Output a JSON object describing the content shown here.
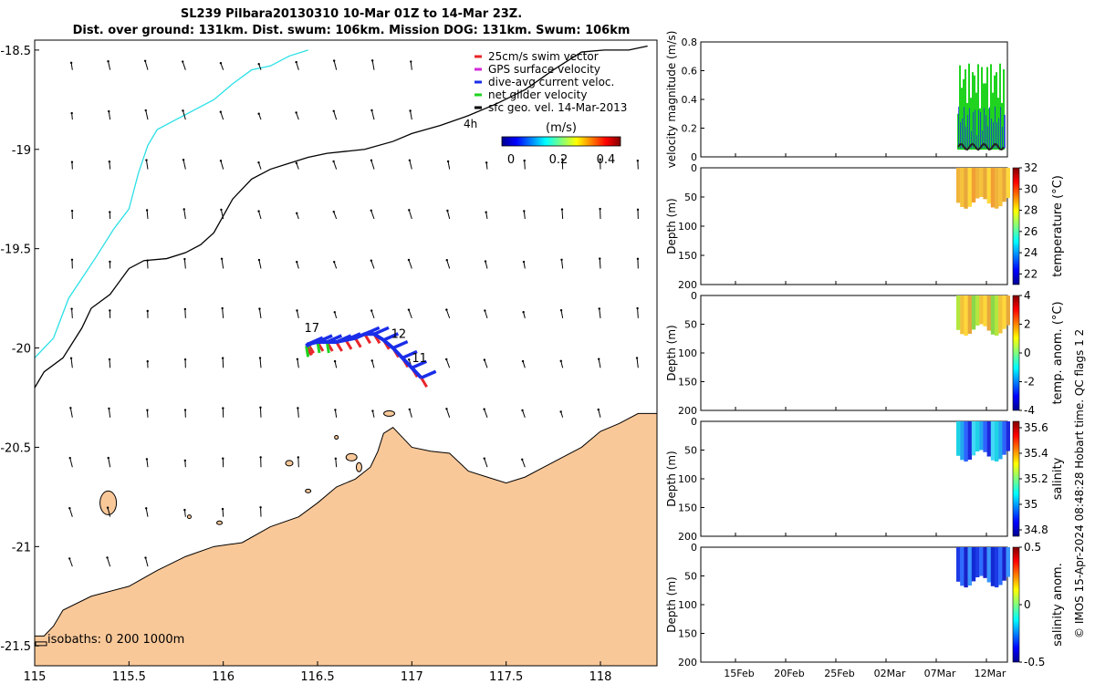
{
  "title": {
    "line1": "SL239 Pilbara20130310 10-Mar 01Z to 14-Mar 23Z.",
    "line2": "Dist. over ground: 131km. Dist. swum: 106km. Mission DOG: 131km. Swum: 106km"
  },
  "caption": "© IMOS 15-Apr-2024 08:48:28 Hobart time. QC flags 1  2",
  "colors": {
    "land": "#f9c899",
    "coast200": "#2be0e6",
    "swim": "#e8262a",
    "gps": "#d12ad8",
    "dive_avg": "#1a2de8",
    "net": "#1fd31f"
  },
  "chart_data": [
    {
      "type": "map",
      "name": "track-map",
      "xlim": [
        115,
        118.3
      ],
      "ylim": [
        -21.6,
        -18.45
      ],
      "x_ticks": [
        115,
        115.5,
        116,
        116.5,
        117,
        117.5,
        118
      ],
      "x_tick_labels": [
        "115",
        "115.5",
        "116",
        "116.5",
        "117",
        "117.5",
        "118"
      ],
      "y_ticks": [
        -18.5,
        -19,
        -19.5,
        -20,
        -20.5,
        -21,
        -21.5
      ],
      "y_tick_labels": [
        "-18.5",
        "-19",
        "-19.5",
        "-20",
        "-20.5",
        "-21",
        "-21.5"
      ],
      "legend": [
        {
          "label": "25cm/s swim vector",
          "color": "#e8262a"
        },
        {
          "label": "GPS surface velocity",
          "color": "#d12ad8"
        },
        {
          "label": "dive-avg current veloc.",
          "color": "#1a2de8"
        },
        {
          "label": "net glider velocity",
          "color": "#1fd31f"
        },
        {
          "label": "sfc geo. vel. 14-Mar-2013",
          "color": "#000000"
        }
      ],
      "scale_label": "4h",
      "colorbar": {
        "label": "(m/s)",
        "ticks": [
          0,
          0.2,
          0.4
        ],
        "tick_labels": [
          "0",
          "0.2",
          "0.4"
        ],
        "range": [
          0,
          0.5
        ]
      },
      "isobaths_label": "isobaths: 0  200  1000m",
      "track_annotations": [
        {
          "label": "17",
          "lon": 116.43,
          "lat": -19.92
        },
        {
          "label": "12",
          "lon": 116.89,
          "lat": -19.95
        },
        {
          "label": "11",
          "lon": 117.0,
          "lat": -20.07
        }
      ],
      "isobath_1000m": [
        [
          115,
          -20.2
        ],
        [
          115.05,
          -20.12
        ],
        [
          115.15,
          -20.05
        ],
        [
          115.25,
          -19.9
        ],
        [
          115.3,
          -19.8
        ],
        [
          115.4,
          -19.73
        ],
        [
          115.5,
          -19.6
        ],
        [
          115.58,
          -19.56
        ],
        [
          115.7,
          -19.55
        ],
        [
          115.8,
          -19.52
        ],
        [
          115.88,
          -19.48
        ],
        [
          115.95,
          -19.42
        ],
        [
          116.05,
          -19.25
        ],
        [
          116.15,
          -19.15
        ],
        [
          116.25,
          -19.1
        ],
        [
          116.35,
          -19.07
        ],
        [
          116.45,
          -19.04
        ],
        [
          116.55,
          -19.02
        ],
        [
          116.65,
          -19.01
        ],
        [
          116.75,
          -19.0
        ],
        [
          116.9,
          -18.96
        ],
        [
          117.0,
          -18.92
        ],
        [
          117.15,
          -18.88
        ],
        [
          117.3,
          -18.83
        ],
        [
          117.45,
          -18.77
        ],
        [
          117.6,
          -18.7
        ],
        [
          117.75,
          -18.6
        ],
        [
          117.9,
          -18.51
        ],
        [
          118.02,
          -18.5
        ],
        [
          118.15,
          -18.5
        ],
        [
          118.25,
          -18.48
        ]
      ],
      "isobath_200m": [
        [
          115,
          -20.05
        ],
        [
          115.1,
          -19.95
        ],
        [
          115.18,
          -19.75
        ],
        [
          115.25,
          -19.65
        ],
        [
          115.32,
          -19.55
        ],
        [
          115.42,
          -19.4
        ],
        [
          115.5,
          -19.3
        ],
        [
          115.55,
          -19.12
        ],
        [
          115.6,
          -18.98
        ],
        [
          115.65,
          -18.9
        ],
        [
          115.75,
          -18.85
        ],
        [
          115.85,
          -18.8
        ],
        [
          115.95,
          -18.75
        ],
        [
          116.05,
          -18.67
        ],
        [
          116.15,
          -18.6
        ],
        [
          116.25,
          -18.58
        ],
        [
          116.35,
          -18.53
        ],
        [
          116.45,
          -18.5
        ]
      ],
      "coastline": [
        [
          115.0,
          -21.45
        ],
        [
          115.05,
          -21.45
        ],
        [
          115.1,
          -21.4
        ],
        [
          115.15,
          -21.32
        ],
        [
          115.3,
          -21.25
        ],
        [
          115.5,
          -21.2
        ],
        [
          115.65,
          -21.12
        ],
        [
          115.8,
          -21.05
        ],
        [
          115.95,
          -21.0
        ],
        [
          116.1,
          -20.98
        ],
        [
          116.25,
          -20.9
        ],
        [
          116.4,
          -20.85
        ],
        [
          116.5,
          -20.78
        ],
        [
          116.6,
          -20.7
        ],
        [
          116.7,
          -20.66
        ],
        [
          116.78,
          -20.6
        ],
        [
          116.82,
          -20.52
        ],
        [
          116.85,
          -20.43
        ],
        [
          116.9,
          -20.4
        ],
        [
          116.95,
          -20.45
        ],
        [
          117.0,
          -20.5
        ],
        [
          117.1,
          -20.52
        ],
        [
          117.2,
          -20.53
        ],
        [
          117.3,
          -20.62
        ],
        [
          117.4,
          -20.65
        ],
        [
          117.5,
          -20.68
        ],
        [
          117.6,
          -20.65
        ],
        [
          117.7,
          -20.6
        ],
        [
          117.8,
          -20.55
        ],
        [
          117.9,
          -20.5
        ],
        [
          118.0,
          -20.42
        ],
        [
          118.1,
          -20.38
        ],
        [
          118.2,
          -20.33
        ],
        [
          118.3,
          -20.33
        ]
      ],
      "glider_track": [
        [
          117.05,
          -20.15
        ],
        [
          117.0,
          -20.1
        ],
        [
          116.95,
          -20.05
        ],
        [
          116.9,
          -20.0
        ],
        [
          116.85,
          -19.96
        ],
        [
          116.8,
          -19.93
        ],
        [
          116.75,
          -19.93
        ],
        [
          116.7,
          -19.95
        ],
        [
          116.65,
          -19.96
        ],
        [
          116.6,
          -19.97
        ],
        [
          116.55,
          -19.97
        ],
        [
          116.5,
          -19.97
        ],
        [
          116.45,
          -19.98
        ],
        [
          116.44,
          -19.99
        ]
      ]
    },
    {
      "type": "timeseries",
      "name": "velocity-panel",
      "ylabel": "velocity magnitude (m/s)",
      "ylim": [
        0,
        0.8
      ],
      "y_ticks": [
        0,
        0.2,
        0.4,
        0.6,
        0.8
      ],
      "y_tick_labels": [
        "0",
        "0.2",
        "0.4",
        "0.6",
        "0.8"
      ]
    },
    {
      "type": "heatmap",
      "name": "temperature-panel",
      "ylabel": "Depth (m)",
      "ylim": [
        0,
        200
      ],
      "y_ticks": [
        0,
        50,
        100,
        150,
        200
      ],
      "y_tick_labels": [
        "0",
        "50",
        "100",
        "150",
        "200"
      ],
      "colorbar_label": "temperature (°C)",
      "colorbar_range": [
        21,
        32
      ],
      "colorbar_ticks": [
        22,
        24,
        26,
        28,
        30,
        32
      ],
      "colorbar_tick_labels": [
        "22",
        "24",
        "26",
        "28",
        "30",
        "32"
      ]
    },
    {
      "type": "heatmap",
      "name": "temp-anomaly-panel",
      "ylabel": "Depth (m)",
      "ylim": [
        0,
        200
      ],
      "y_ticks": [
        0,
        50,
        100,
        150,
        200
      ],
      "y_tick_labels": [
        "0",
        "50",
        "100",
        "150",
        "200"
      ],
      "colorbar_label": "temp. anom. (°C)",
      "colorbar_range": [
        -4,
        4
      ],
      "colorbar_ticks": [
        -4,
        -2,
        0,
        2,
        4
      ],
      "colorbar_tick_labels": [
        "-4",
        "-2",
        "0",
        "2",
        "4"
      ]
    },
    {
      "type": "heatmap",
      "name": "salinity-panel",
      "ylabel": "Depth (m)",
      "ylim": [
        0,
        200
      ],
      "y_ticks": [
        0,
        50,
        100,
        150,
        200
      ],
      "y_tick_labels": [
        "0",
        "50",
        "100",
        "150",
        "200"
      ],
      "colorbar_label": "salinity",
      "colorbar_range": [
        34.75,
        35.65
      ],
      "colorbar_ticks": [
        34.8,
        35,
        35.2,
        35.4,
        35.6
      ],
      "colorbar_tick_labels": [
        "34.8",
        "35",
        "35.2",
        "35.4",
        "35.6"
      ]
    },
    {
      "type": "heatmap",
      "name": "salinity-anomaly-panel",
      "ylabel": "Depth (m)",
      "ylim": [
        0,
        200
      ],
      "y_ticks": [
        0,
        50,
        100,
        150,
        200
      ],
      "y_tick_labels": [
        "0",
        "50",
        "100",
        "150",
        "200"
      ],
      "colorbar_label": "salinity anom.",
      "colorbar_range": [
        -0.5,
        0.5
      ],
      "colorbar_ticks": [
        -0.5,
        0,
        0.5
      ],
      "colorbar_tick_labels": [
        "-0.5",
        "0",
        "0.5"
      ],
      "x_tick_labels": [
        "15Feb",
        "20Feb",
        "25Feb",
        "02Mar",
        "07Mar",
        "12Mar"
      ]
    }
  ]
}
